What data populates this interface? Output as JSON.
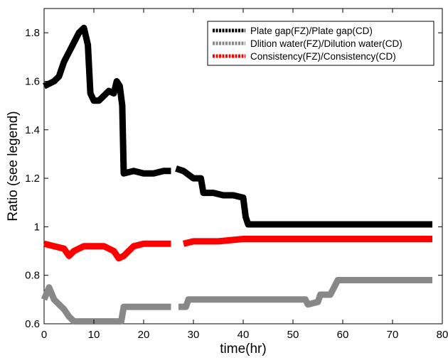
{
  "chart_data": {
    "type": "line",
    "xlabel": "time(hr)",
    "ylabel": "Ratio (see legend)",
    "xlim": [
      0,
      80
    ],
    "ylim": [
      0.6,
      1.9
    ],
    "xticks": [
      0,
      10,
      20,
      30,
      40,
      50,
      60,
      70,
      80
    ],
    "xtick_labels": [
      "0",
      "10",
      "20",
      "30",
      "40",
      "50",
      "60",
      "70",
      "80"
    ],
    "yticks": [
      0.6,
      0.8,
      1.0,
      1.2,
      1.4,
      1.6,
      1.8
    ],
    "ytick_labels": [
      "0.6",
      "0.8",
      "1",
      "1.2",
      "1.4",
      "1.6",
      "1.8"
    ],
    "grid": false,
    "legend_position": "top-right",
    "series": [
      {
        "name": "Plate gap(FZ)/Plate gap(CD)",
        "color": "#000000",
        "x": [
          0,
          2,
          3,
          4,
          5,
          6,
          7,
          8,
          8.8,
          9.3,
          10,
          11,
          12,
          13,
          14,
          14.6,
          15.2,
          15.7,
          16,
          18,
          20,
          22,
          24,
          25.5,
          26,
          26.5,
          28,
          30,
          31.5,
          32,
          34,
          36,
          38,
          40,
          40.5,
          41,
          45,
          50,
          55,
          60,
          65,
          70,
          75,
          78
        ],
        "y": [
          1.58,
          1.6,
          1.62,
          1.68,
          1.72,
          1.76,
          1.8,
          1.82,
          1.75,
          1.55,
          1.52,
          1.52,
          1.54,
          1.56,
          1.55,
          1.6,
          1.58,
          1.5,
          1.22,
          1.23,
          1.22,
          1.22,
          1.23,
          1.23,
          null,
          1.24,
          1.23,
          1.2,
          1.2,
          1.14,
          1.14,
          1.13,
          1.13,
          1.12,
          1.04,
          1.01,
          1.01,
          1.01,
          1.01,
          1.01,
          1.01,
          1.01,
          1.01,
          1.01
        ]
      },
      {
        "name": "Dlition water(FZ)/Dilution water(CD)",
        "color": "#888888",
        "x": [
          0,
          1,
          2,
          3,
          4,
          5,
          6,
          8,
          10,
          12,
          14,
          15.5,
          16,
          18,
          20,
          22,
          24,
          25.5,
          26,
          27,
          28.5,
          29,
          32,
          36,
          40,
          44,
          48,
          52.5,
          53,
          55,
          55.5,
          57.5,
          58.5,
          59,
          62,
          66,
          70,
          74,
          78
        ],
        "y": [
          0.7,
          0.75,
          0.7,
          0.68,
          0.66,
          0.63,
          0.61,
          0.61,
          0.61,
          0.61,
          0.61,
          0.61,
          0.67,
          0.67,
          0.67,
          0.67,
          0.67,
          0.67,
          null,
          0.67,
          0.67,
          0.7,
          0.7,
          0.7,
          0.7,
          0.7,
          0.7,
          0.7,
          0.68,
          0.69,
          0.72,
          0.72,
          0.76,
          0.78,
          0.78,
          0.78,
          0.78,
          0.78,
          0.78
        ]
      },
      {
        "name": "Consistency(FZ)/Consistency(CD)",
        "color": "#ff0000",
        "x": [
          0,
          2,
          4,
          5,
          6,
          8,
          10,
          12,
          14,
          15,
          16,
          17,
          18,
          20,
          22,
          24,
          25.5,
          26,
          28,
          30,
          35,
          40,
          45,
          50,
          55,
          60,
          65,
          70,
          75,
          78
        ],
        "y": [
          0.93,
          0.92,
          0.91,
          0.88,
          0.9,
          0.92,
          0.92,
          0.92,
          0.9,
          0.87,
          0.88,
          0.9,
          0.92,
          0.93,
          0.93,
          0.93,
          0.93,
          null,
          0.93,
          0.94,
          0.94,
          0.95,
          0.95,
          0.95,
          0.95,
          0.95,
          0.95,
          0.95,
          0.95,
          0.95
        ]
      }
    ]
  }
}
